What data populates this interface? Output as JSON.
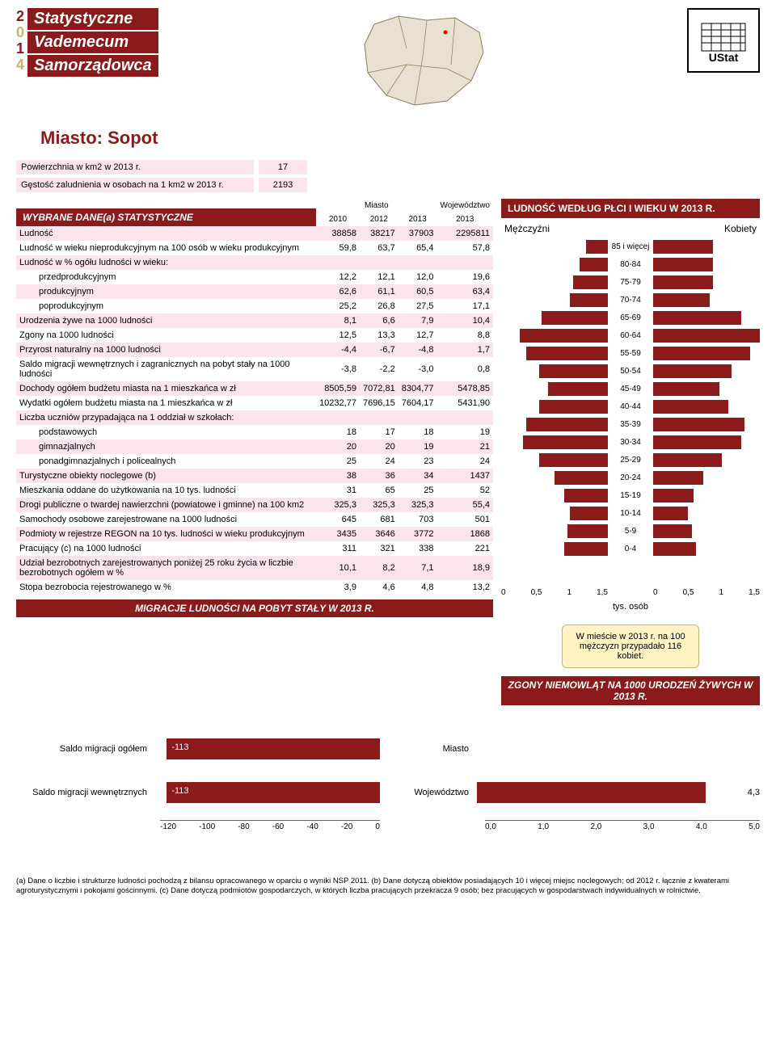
{
  "header": {
    "year_digits": [
      "2",
      "0",
      "1",
      "4"
    ],
    "title_words": [
      "Statystyczne",
      "Vademecum",
      "Samorządowca"
    ],
    "ustat_label": "UStat"
  },
  "miasto_title": "Miasto: Sopot",
  "basics": {
    "rows": [
      {
        "label": "Powierzchnia w km2 w 2013 r.",
        "value": "17"
      },
      {
        "label": "Gęstość zaludnienia w osobach na 1 km2 w 2013 r.",
        "value": "2193"
      }
    ]
  },
  "main_table": {
    "header_label": "WYBRANE DANE(a) STATYSTYCZNE",
    "col_group_miasto": "Miasto",
    "col_group_woj": "Województwo",
    "cols": [
      "2010",
      "2012",
      "2013",
      "2013"
    ],
    "rows": [
      {
        "pink": true,
        "label": "Ludność",
        "v": [
          "38858",
          "38217",
          "37903",
          "2295811"
        ]
      },
      {
        "label": "Ludność w wieku nieprodukcyjnym na 100 osób w wieku produkcyjnym",
        "v": [
          "59,8",
          "63,7",
          "65,4",
          "57,8"
        ]
      },
      {
        "pink": true,
        "label": "Ludność w % ogółu ludności w wieku:",
        "v": [
          "",
          "",
          "",
          ""
        ]
      },
      {
        "label": "przedprodukcyjnym",
        "indent": true,
        "v": [
          "12,2",
          "12,1",
          "12,0",
          "19,6"
        ]
      },
      {
        "pink": true,
        "label": "produkcyjnym",
        "indent": true,
        "v": [
          "62,6",
          "61,1",
          "60,5",
          "63,4"
        ]
      },
      {
        "label": "poprodukcyjnym",
        "indent": true,
        "v": [
          "25,2",
          "26,8",
          "27,5",
          "17,1"
        ]
      },
      {
        "pink": true,
        "label": "Urodzenia żywe na 1000 ludności",
        "v": [
          "8,1",
          "6,6",
          "7,9",
          "10,4"
        ]
      },
      {
        "label": "Zgony na 1000 ludności",
        "v": [
          "12,5",
          "13,3",
          "12,7",
          "8,8"
        ]
      },
      {
        "pink": true,
        "label": "Przyrost naturalny na 1000 ludności",
        "v": [
          "-4,4",
          "-6,7",
          "-4,8",
          "1,7"
        ]
      },
      {
        "label": "Saldo migracji wewnętrznych i zagranicznych na pobyt stały na 1000 ludności",
        "v": [
          "-3,8",
          "-2,2",
          "-3,0",
          "0,8"
        ]
      },
      {
        "pink": true,
        "label": "Dochody ogółem budżetu miasta na 1 mieszkańca w zł",
        "v": [
          "8505,59",
          "7072,81",
          "8304,77",
          "5478,85"
        ]
      },
      {
        "label": "Wydatki ogółem budżetu miasta na 1 mieszkańca w zł",
        "v": [
          "10232,77",
          "7696,15",
          "7604,17",
          "5431,90"
        ]
      },
      {
        "pink": true,
        "label": "Liczba uczniów przypadająca na 1 oddział w szkołach:",
        "v": [
          "",
          "",
          "",
          ""
        ]
      },
      {
        "label": "podstawowych",
        "indent": true,
        "v": [
          "18",
          "17",
          "18",
          "19"
        ]
      },
      {
        "pink": true,
        "label": "gimnazjalnych",
        "indent": true,
        "v": [
          "20",
          "20",
          "19",
          "21"
        ]
      },
      {
        "label": "ponadgimnazjalnych i policealnych",
        "indent": true,
        "v": [
          "25",
          "24",
          "23",
          "24"
        ]
      },
      {
        "pink": true,
        "label": "Turystyczne obiekty noclegowe (b)",
        "v": [
          "38",
          "36",
          "34",
          "1437"
        ]
      },
      {
        "label": "Mieszkania oddane do użytkowania na 10 tys. ludności",
        "v": [
          "31",
          "65",
          "25",
          "52"
        ]
      },
      {
        "pink": true,
        "label": "Drogi publiczne o twardej nawierzchni (powiatowe i gminne) na 100 km2",
        "v": [
          "325,3",
          "325,3",
          "325,3",
          "55,4"
        ]
      },
      {
        "label": "Samochody osobowe zarejestrowane na 1000 ludności",
        "v": [
          "645",
          "681",
          "703",
          "501"
        ]
      },
      {
        "pink": true,
        "label": "Podmioty w rejestrze REGON na 10 tys. ludności w wieku produkcyjnym",
        "v": [
          "3435",
          "3646",
          "3772",
          "1868"
        ]
      },
      {
        "label": "Pracujący (c) na 1000 ludności",
        "v": [
          "311",
          "321",
          "338",
          "221"
        ]
      },
      {
        "pink": true,
        "label": "Udział bezrobotnych zarejestrowanych poniżej 25 roku życia w liczbie bezrobotnych ogółem w %",
        "v": [
          "10,1",
          "8,2",
          "7,1",
          "18,9"
        ]
      },
      {
        "label": "Stopa bezrobocia rejestrowanego w %",
        "v": [
          "3,9",
          "4,6",
          "4,8",
          "13,2"
        ]
      }
    ]
  },
  "pyramid": {
    "title": "LUDNOŚĆ WEDŁUG PŁCI I WIEKU W 2013 R.",
    "male_label": "Mężczyźni",
    "female_label": "Kobiety",
    "unit": "tys. osób",
    "axis_ticks_left": [
      "1,5",
      "1",
      "0,5",
      "0"
    ],
    "axis_ticks_right": [
      "0",
      "0,5",
      "1",
      "1,5"
    ],
    "max": 1.7,
    "bar_color": "#8b1a1a",
    "rows": [
      {
        "label": "85 i więcej",
        "m": 0.35,
        "f": 0.95
      },
      {
        "label": "80-84",
        "m": 0.45,
        "f": 0.95
      },
      {
        "label": "75-79",
        "m": 0.55,
        "f": 0.95
      },
      {
        "label": "70-74",
        "m": 0.6,
        "f": 0.9
      },
      {
        "label": "65-69",
        "m": 1.05,
        "f": 1.4
      },
      {
        "label": "60-64",
        "m": 1.4,
        "f": 1.7
      },
      {
        "label": "55-59",
        "m": 1.3,
        "f": 1.55
      },
      {
        "label": "50-54",
        "m": 1.1,
        "f": 1.25
      },
      {
        "label": "45-49",
        "m": 0.95,
        "f": 1.05
      },
      {
        "label": "40-44",
        "m": 1.1,
        "f": 1.2
      },
      {
        "label": "35-39",
        "m": 1.3,
        "f": 1.45
      },
      {
        "label": "30-34",
        "m": 1.35,
        "f": 1.4
      },
      {
        "label": "25-29",
        "m": 1.1,
        "f": 1.1
      },
      {
        "label": "20-24",
        "m": 0.85,
        "f": 0.8
      },
      {
        "label": "15-19",
        "m": 0.7,
        "f": 0.65
      },
      {
        "label": "10-14",
        "m": 0.6,
        "f": 0.55
      },
      {
        "label": "5-9",
        "m": 0.65,
        "f": 0.62
      },
      {
        "label": "0-4",
        "m": 0.7,
        "f": 0.68
      }
    ],
    "callout": "W mieście w 2013 r. na 100 mężczyzn przypadało 116 kobiet."
  },
  "migration": {
    "title": "MIGRACJE LUDNOŚCI NA POBYT STAŁY W 2013 R.",
    "rows": [
      {
        "label": "Saldo migracji ogółem",
        "value": -113,
        "display": "-113"
      },
      {
        "label": "Saldo migracji wewnętrznych",
        "value": -113,
        "display": "-113"
      }
    ],
    "xmin": -120,
    "xmax": 0,
    "ticks": [
      "-120",
      "-100",
      "-80",
      "-60",
      "-40",
      "-20",
      "0"
    ],
    "bar_color": "#8b1a1a"
  },
  "zgony": {
    "title": "ZGONY NIEMOWLĄT NA 1000 URODZEŃ ŻYWYCH W 2013 R.",
    "rows": [
      {
        "label": "Miasto",
        "value": 0,
        "display": ""
      },
      {
        "label": "Województwo",
        "value": 4.3,
        "display": "4,3"
      }
    ],
    "xmin": 0,
    "xmax": 5,
    "ticks": [
      "0,0",
      "1,0",
      "2,0",
      "3,0",
      "4,0",
      "5,0"
    ],
    "bar_color": "#8b1a1a"
  },
  "footnote": "(a) Dane o liczbie i strukturze ludności pochodzą z bilansu opracowanego w oparciu o wyniki NSP 2011. (b) Dane dotyczą obiektów posiadających 10 i więcej miejsc noclegowych; od 2012 r. łącznie z kwaterami agroturystycznymi i pokojami gościnnymi. (c) Dane dotyczą podmiotów gospodarczych, w których liczba pracujących przekracza 9 osób; bez pracujących w gospodarstwach indywidualnych w rolnictwie."
}
